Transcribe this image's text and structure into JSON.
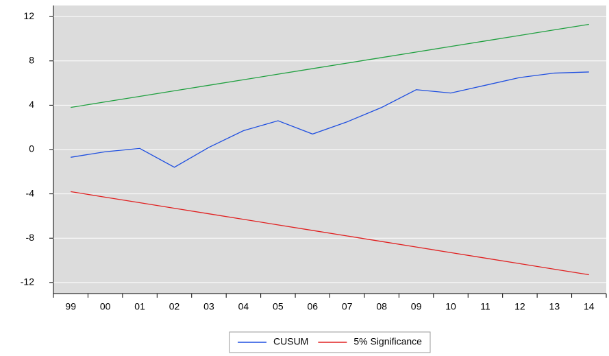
{
  "chart_data": {
    "type": "line",
    "categories": [
      "99",
      "00",
      "01",
      "02",
      "03",
      "04",
      "05",
      "06",
      "07",
      "08",
      "09",
      "10",
      "11",
      "12",
      "13",
      "14"
    ],
    "series": [
      {
        "name": "CUSUM",
        "color": "#1f4fe0",
        "values": [
          -0.7,
          -0.2,
          0.1,
          -1.6,
          0.2,
          1.7,
          2.6,
          1.4,
          2.5,
          3.8,
          5.4,
          5.1,
          5.8,
          6.5,
          6.9,
          7.0
        ]
      },
      {
        "name": "5% Significance",
        "color": "#e02020",
        "values": [
          -3.8,
          -4.3,
          -4.8,
          -5.3,
          -5.8,
          -6.3,
          -6.8,
          -7.3,
          -7.8,
          -8.3,
          -8.8,
          -9.3,
          -9.8,
          -10.3,
          -10.8,
          -11.3
        ]
      },
      {
        "color": "#20a040",
        "values": [
          3.8,
          4.3,
          4.8,
          5.3,
          5.8,
          6.3,
          6.8,
          7.3,
          7.8,
          8.3,
          8.8,
          9.3,
          9.8,
          10.3,
          10.8,
          11.3
        ]
      }
    ],
    "ylim": [
      -13,
      13
    ],
    "yticks": [
      -12,
      -8,
      -4,
      0,
      4,
      8,
      12
    ],
    "grid": true
  }
}
